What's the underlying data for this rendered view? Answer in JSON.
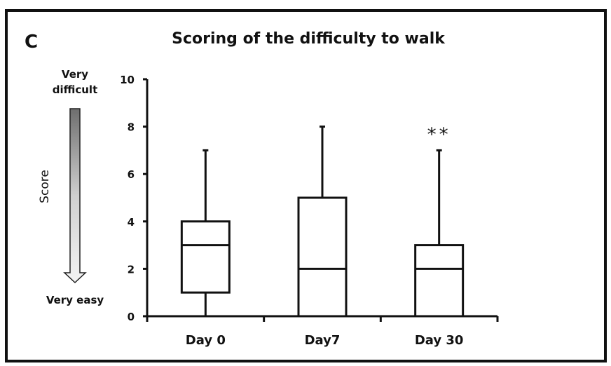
{
  "chart_data": {
    "type": "boxplot",
    "panel_label": "C",
    "title": "Scoring of the difficulty to walk",
    "ylabel": "Score",
    "scale_top_label": "Very difficult",
    "scale_top_label_lines": [
      "Very",
      "difficult"
    ],
    "scale_bottom_label": "Very easy",
    "ylim": [
      0,
      10
    ],
    "yticks": [
      0,
      2,
      4,
      6,
      8,
      10
    ],
    "categories": [
      "Day 0",
      "Day7",
      "Day 30"
    ],
    "boxes": [
      {
        "category": "Day 0",
        "min": 0,
        "q1": 1,
        "median": 3,
        "q3": 4,
        "max": 7,
        "annotation": ""
      },
      {
        "category": "Day7",
        "min": 0,
        "q1": 0,
        "median": 2,
        "q3": 5,
        "max": 8,
        "annotation": ""
      },
      {
        "category": "Day 30",
        "min": 0,
        "q1": 0,
        "median": 2,
        "q3": 3,
        "max": 7,
        "annotation": "**"
      }
    ],
    "grid": false
  }
}
